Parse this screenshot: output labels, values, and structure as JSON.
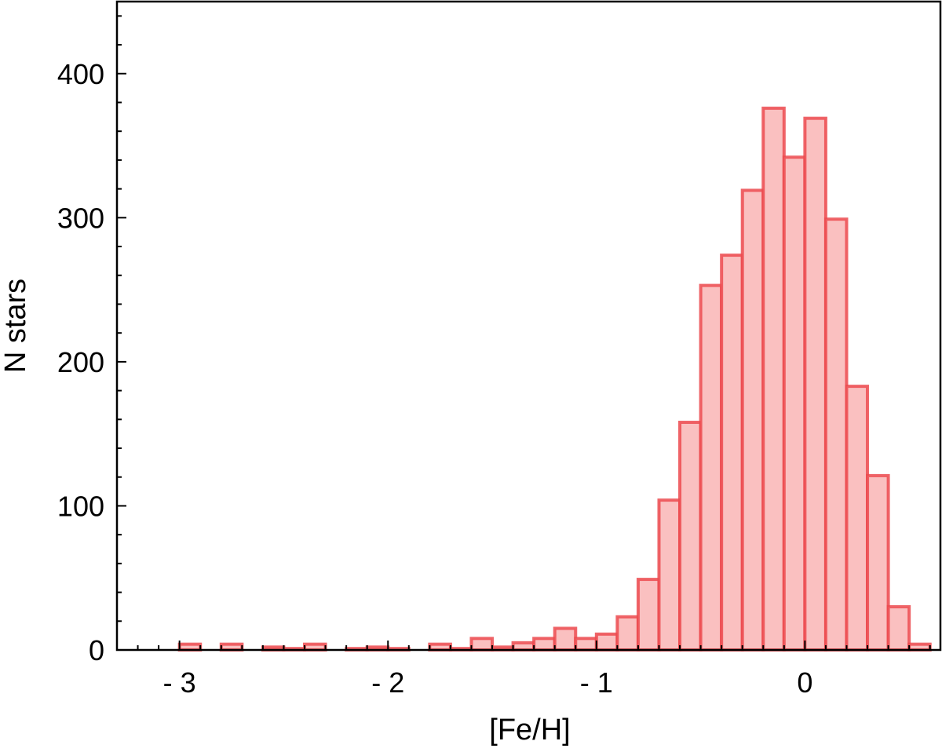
{
  "chart_data": {
    "type": "bar",
    "title": "",
    "xlabel": "[Fe/H]",
    "ylabel": "N stars",
    "xlim": [
      -3.3,
      0.65
    ],
    "ylim": [
      0,
      450
    ],
    "bin_width": 0.1,
    "x_ticks": [
      -3,
      -2,
      -1,
      0
    ],
    "x_tick_labels": [
      "- 3",
      "- 2",
      "- 1",
      "0"
    ],
    "y_ticks": [
      0,
      100,
      200,
      300,
      400
    ],
    "y_tick_labels": [
      "0",
      "100",
      "200",
      "300",
      "400"
    ],
    "grid": false,
    "bars": [
      {
        "x0": -3.0,
        "x1": -2.9,
        "value": 4
      },
      {
        "x0": -2.8,
        "x1": -2.7,
        "value": 4
      },
      {
        "x0": -2.6,
        "x1": -2.5,
        "value": 2
      },
      {
        "x0": -2.5,
        "x1": -2.4,
        "value": 1
      },
      {
        "x0": -2.4,
        "x1": -2.3,
        "value": 4
      },
      {
        "x0": -2.2,
        "x1": -2.1,
        "value": 1
      },
      {
        "x0": -2.1,
        "x1": -2.0,
        "value": 2
      },
      {
        "x0": -2.0,
        "x1": -1.9,
        "value": 1
      },
      {
        "x0": -1.8,
        "x1": -1.7,
        "value": 4
      },
      {
        "x0": -1.7,
        "x1": -1.6,
        "value": 1
      },
      {
        "x0": -1.6,
        "x1": -1.5,
        "value": 8
      },
      {
        "x0": -1.5,
        "x1": -1.4,
        "value": 2
      },
      {
        "x0": -1.4,
        "x1": -1.3,
        "value": 5
      },
      {
        "x0": -1.3,
        "x1": -1.2,
        "value": 8
      },
      {
        "x0": -1.2,
        "x1": -1.1,
        "value": 15
      },
      {
        "x0": -1.1,
        "x1": -1.0,
        "value": 8
      },
      {
        "x0": -1.0,
        "x1": -0.9,
        "value": 11
      },
      {
        "x0": -0.9,
        "x1": -0.8,
        "value": 23
      },
      {
        "x0": -0.8,
        "x1": -0.7,
        "value": 49
      },
      {
        "x0": -0.7,
        "x1": -0.6,
        "value": 104
      },
      {
        "x0": -0.6,
        "x1": -0.5,
        "value": 158
      },
      {
        "x0": -0.5,
        "x1": -0.4,
        "value": 253
      },
      {
        "x0": -0.4,
        "x1": -0.3,
        "value": 274
      },
      {
        "x0": -0.3,
        "x1": -0.2,
        "value": 319
      },
      {
        "x0": -0.2,
        "x1": -0.1,
        "value": 376
      },
      {
        "x0": -0.1,
        "x1": 0.0,
        "value": 342
      },
      {
        "x0": 0.0,
        "x1": 0.1,
        "value": 369
      },
      {
        "x0": 0.1,
        "x1": 0.2,
        "value": 299
      },
      {
        "x0": 0.2,
        "x1": 0.3,
        "value": 183
      },
      {
        "x0": 0.3,
        "x1": 0.4,
        "value": 121
      },
      {
        "x0": 0.4,
        "x1": 0.5,
        "value": 30
      },
      {
        "x0": 0.5,
        "x1": 0.6,
        "value": 4
      }
    ],
    "colors": {
      "bar_fill": "#fac0c0",
      "bar_stroke": "#ec4a4f",
      "axis": "#000000"
    }
  }
}
